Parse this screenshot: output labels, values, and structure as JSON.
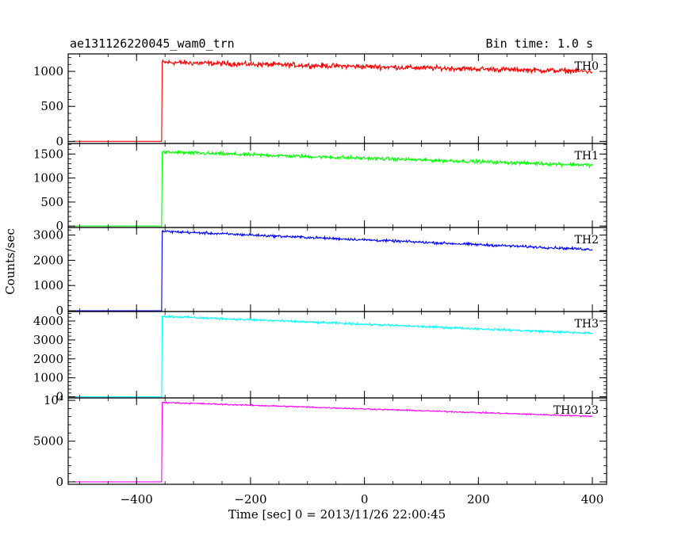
{
  "header": {
    "title": "ae131126220045_wam0_trn",
    "bin_time": "Bin time: 1.0 s"
  },
  "chart_data": {
    "type": "line",
    "xlabel": "Time [sec] 0 = 2013/11/26 22:00:45",
    "ylabel": "Counts/sec",
    "xlim": [
      -520,
      425
    ],
    "x_ticks": [
      -400,
      -200,
      0,
      200,
      400
    ],
    "x_tick_labels": [
      "−400",
      "−200",
      "0",
      "200",
      "400"
    ],
    "panels": [
      {
        "name": "TH0",
        "color": "#ff0000",
        "ylim": [
          -30,
          1250
        ],
        "y_ticks": [
          0,
          500,
          1000
        ],
        "y_tick_labels": [
          "0",
          "500",
          "1000"
        ],
        "baseline": 0,
        "onset_x": -355,
        "start_level": 1130,
        "end_level": 1000,
        "noise": 55,
        "end_x": 400
      },
      {
        "name": "TH1",
        "color": "#00ff00",
        "ylim": [
          -30,
          1720
        ],
        "y_ticks": [
          0,
          500,
          1000,
          1500
        ],
        "y_tick_labels": [
          "0",
          "500",
          "1000",
          "1500"
        ],
        "baseline": 0,
        "onset_x": -355,
        "start_level": 1540,
        "end_level": 1270,
        "noise": 55,
        "end_x": 400
      },
      {
        "name": "TH2",
        "color": "#0000ff",
        "ylim": [
          -30,
          3300
        ],
        "y_ticks": [
          0,
          1000,
          2000,
          3000
        ],
        "y_tick_labels": [
          "0",
          "1000",
          "2000",
          "3000"
        ],
        "baseline": 0,
        "onset_x": -355,
        "start_level": 3150,
        "end_level": 2430,
        "noise": 75,
        "end_x": 400
      },
      {
        "name": "TH3",
        "color": "#00ffff",
        "ylim": [
          -60,
          4500
        ],
        "y_ticks": [
          0,
          1000,
          2000,
          3000,
          4000
        ],
        "y_tick_labels": [
          "0",
          "1000",
          "2000",
          "3000",
          "4000"
        ],
        "baseline": 0,
        "onset_x": -355,
        "start_level": 4250,
        "end_level": 3350,
        "noise": 85,
        "end_x": 400
      },
      {
        "name": "TH0123",
        "color": "#ff00ff",
        "ylim": [
          -300,
          10300
        ],
        "y_ticks": [
          0,
          5000,
          10000
        ],
        "y_tick_labels": [
          "0",
          "5000",
          "10⁴"
        ],
        "baseline": 0,
        "onset_x": -355,
        "start_level": 9750,
        "end_level": 8050,
        "noise": 120,
        "end_x": 400
      }
    ]
  }
}
